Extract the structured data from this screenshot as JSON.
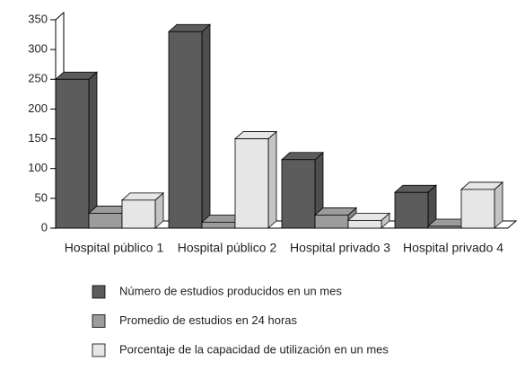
{
  "chart_data": {
    "type": "bar3d",
    "categories": [
      "Hospital público 1",
      "Hospital público 2",
      "Hospital privado 3",
      "Hospital privado 4"
    ],
    "series": [
      {
        "name": "Número de estudios producidos en un mes",
        "color": "#5c5c5c",
        "values": [
          250,
          330,
          115,
          60
        ]
      },
      {
        "name": "Promedio de estudios en 24 horas",
        "color": "#9c9c9c",
        "values": [
          25,
          10,
          22,
          3
        ]
      },
      {
        "name": "Porcentaje de la capacidad de utilización en un mes",
        "color": "#e6e6e6",
        "values": [
          47,
          150,
          13,
          65
        ]
      }
    ],
    "ylim": [
      0,
      350
    ],
    "yticks": [
      0,
      50,
      100,
      150,
      200,
      250,
      300,
      350
    ],
    "legend": "bottom"
  }
}
